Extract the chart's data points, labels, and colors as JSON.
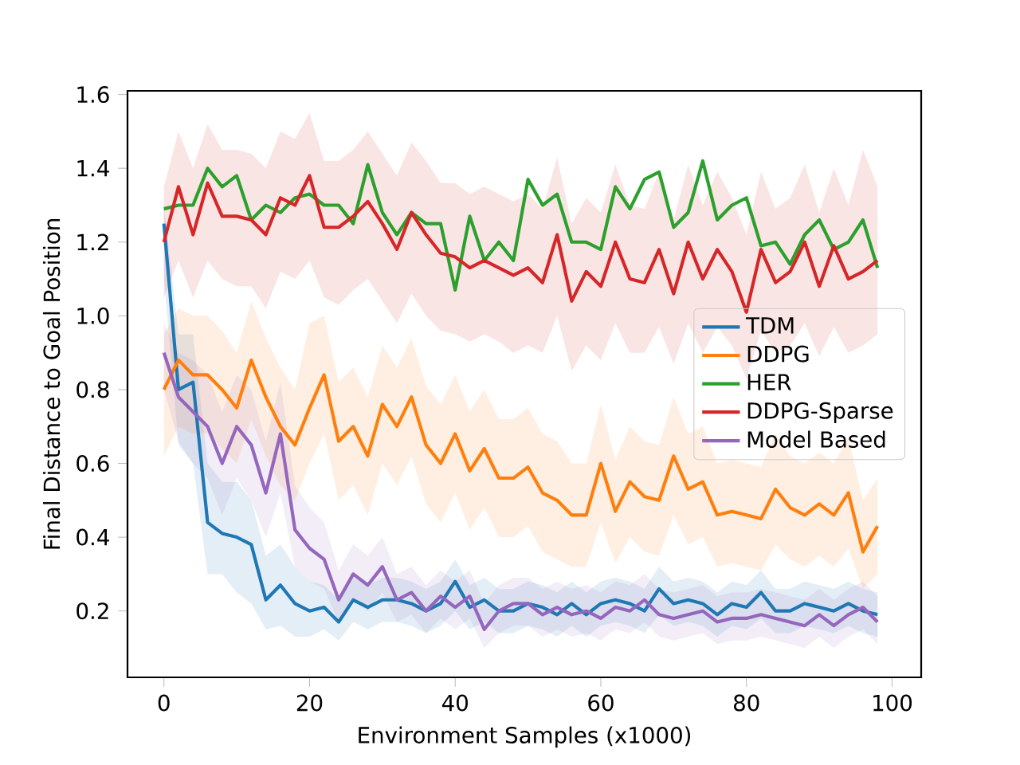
{
  "chart_data": {
    "type": "line",
    "xlabel": "Environment Samples (x1000)",
    "ylabel": "Final Distance to Goal Position",
    "legend": "right",
    "xlim": [
      -5,
      104
    ],
    "ylim": [
      0.02,
      1.61
    ],
    "xticks": [
      0,
      20,
      40,
      60,
      80,
      100
    ],
    "yticks": [
      {
        "value": 0.2,
        "label": "0.2"
      },
      {
        "value": 0.4,
        "label": "0.4"
      },
      {
        "value": 0.6,
        "label": "0.6"
      },
      {
        "value": 0.8,
        "label": "0.8"
      },
      {
        "value": 1.0,
        "label": "1.0"
      },
      {
        "value": 1.2,
        "label": "1.2"
      },
      {
        "value": 1.4,
        "label": "1.4"
      },
      {
        "value": 1.6,
        "label": "1.6"
      }
    ],
    "x": [
      0,
      2,
      4,
      6,
      8,
      10,
      12,
      14,
      16,
      18,
      20,
      22,
      24,
      26,
      28,
      30,
      32,
      34,
      36,
      38,
      40,
      42,
      44,
      46,
      48,
      50,
      52,
      54,
      56,
      58,
      60,
      62,
      64,
      66,
      68,
      70,
      72,
      74,
      76,
      78,
      80,
      82,
      84,
      86,
      88,
      90,
      92,
      94,
      96,
      98
    ],
    "series": [
      {
        "name": "TDM",
        "color": "#1f77b4",
        "values": [
          1.25,
          0.8,
          0.82,
          0.44,
          0.41,
          0.4,
          0.38,
          0.23,
          0.27,
          0.22,
          0.2,
          0.21,
          0.17,
          0.23,
          0.21,
          0.23,
          0.23,
          0.22,
          0.2,
          0.22,
          0.28,
          0.21,
          0.23,
          0.2,
          0.2,
          0.22,
          0.21,
          0.19,
          0.22,
          0.19,
          0.22,
          0.23,
          0.22,
          0.2,
          0.26,
          0.22,
          0.23,
          0.22,
          0.19,
          0.22,
          0.21,
          0.25,
          0.2,
          0.2,
          0.22,
          0.21,
          0.2,
          0.22,
          0.2,
          0.19
        ],
        "lower": [
          1.1,
          0.65,
          0.6,
          0.3,
          0.3,
          0.25,
          0.22,
          0.15,
          0.16,
          0.13,
          0.13,
          0.15,
          0.12,
          0.17,
          0.15,
          0.17,
          0.17,
          0.16,
          0.14,
          0.16,
          0.2,
          0.15,
          0.17,
          0.14,
          0.14,
          0.16,
          0.15,
          0.13,
          0.16,
          0.13,
          0.16,
          0.17,
          0.16,
          0.14,
          0.19,
          0.16,
          0.17,
          0.16,
          0.13,
          0.16,
          0.15,
          0.18,
          0.14,
          0.14,
          0.16,
          0.15,
          0.14,
          0.16,
          0.14,
          0.13
        ],
        "upper": [
          1.3,
          0.95,
          0.95,
          0.6,
          0.55,
          0.55,
          0.5,
          0.35,
          0.38,
          0.32,
          0.28,
          0.27,
          0.23,
          0.29,
          0.27,
          0.29,
          0.29,
          0.28,
          0.26,
          0.28,
          0.34,
          0.27,
          0.29,
          0.26,
          0.26,
          0.28,
          0.27,
          0.25,
          0.28,
          0.25,
          0.28,
          0.29,
          0.28,
          0.26,
          0.32,
          0.28,
          0.29,
          0.28,
          0.25,
          0.28,
          0.27,
          0.31,
          0.26,
          0.26,
          0.28,
          0.27,
          0.26,
          0.28,
          0.26,
          0.25
        ]
      },
      {
        "name": "DDPG",
        "color": "#ff7f0e",
        "values": [
          0.8,
          0.88,
          0.84,
          0.84,
          0.8,
          0.75,
          0.88,
          0.78,
          0.7,
          0.65,
          0.75,
          0.84,
          0.66,
          0.7,
          0.62,
          0.76,
          0.7,
          0.78,
          0.65,
          0.6,
          0.68,
          0.58,
          0.64,
          0.56,
          0.56,
          0.59,
          0.52,
          0.5,
          0.46,
          0.46,
          0.6,
          0.47,
          0.55,
          0.51,
          0.5,
          0.62,
          0.53,
          0.55,
          0.46,
          0.47,
          0.46,
          0.45,
          0.53,
          0.48,
          0.46,
          0.49,
          0.46,
          0.52,
          0.36,
          0.43
        ],
        "lower": [
          0.62,
          0.7,
          0.68,
          0.68,
          0.64,
          0.6,
          0.72,
          0.62,
          0.54,
          0.5,
          0.6,
          0.68,
          0.5,
          0.54,
          0.46,
          0.6,
          0.54,
          0.62,
          0.49,
          0.44,
          0.52,
          0.42,
          0.48,
          0.4,
          0.4,
          0.43,
          0.36,
          0.34,
          0.32,
          0.32,
          0.44,
          0.33,
          0.4,
          0.36,
          0.35,
          0.46,
          0.38,
          0.4,
          0.32,
          0.33,
          0.32,
          0.31,
          0.38,
          0.34,
          0.32,
          0.35,
          0.32,
          0.37,
          0.26,
          0.3
        ],
        "upper": [
          0.95,
          1.02,
          1.0,
          1.0,
          0.96,
          0.9,
          1.04,
          0.94,
          0.86,
          0.8,
          0.98,
          1.0,
          0.82,
          0.86,
          0.78,
          0.92,
          0.86,
          0.94,
          0.81,
          0.76,
          0.84,
          0.74,
          0.8,
          0.72,
          0.72,
          0.75,
          0.68,
          0.66,
          0.6,
          0.6,
          0.76,
          0.61,
          0.7,
          0.66,
          0.65,
          0.78,
          0.68,
          0.7,
          0.6,
          0.61,
          0.6,
          0.59,
          0.68,
          0.62,
          0.6,
          0.63,
          0.6,
          0.67,
          0.5,
          0.56
        ]
      },
      {
        "name": "HER",
        "color": "#2ca02c",
        "values": [
          1.29,
          1.3,
          1.3,
          1.4,
          1.35,
          1.38,
          1.26,
          1.3,
          1.28,
          1.32,
          1.33,
          1.3,
          1.3,
          1.25,
          1.41,
          1.28,
          1.22,
          1.28,
          1.25,
          1.25,
          1.07,
          1.27,
          1.15,
          1.2,
          1.15,
          1.37,
          1.3,
          1.33,
          1.2,
          1.2,
          1.18,
          1.35,
          1.29,
          1.37,
          1.39,
          1.24,
          1.28,
          1.42,
          1.26,
          1.3,
          1.32,
          1.19,
          1.2,
          1.14,
          1.22,
          1.26,
          1.18,
          1.2,
          1.26,
          1.13
        ]
      },
      {
        "name": "DDPG-Sparse",
        "color": "#d62728",
        "values": [
          1.2,
          1.35,
          1.22,
          1.36,
          1.27,
          1.27,
          1.26,
          1.22,
          1.32,
          1.3,
          1.38,
          1.24,
          1.24,
          1.27,
          1.31,
          1.25,
          1.18,
          1.28,
          1.22,
          1.17,
          1.16,
          1.13,
          1.15,
          1.13,
          1.11,
          1.13,
          1.09,
          1.22,
          1.04,
          1.12,
          1.08,
          1.2,
          1.1,
          1.09,
          1.18,
          1.06,
          1.2,
          1.1,
          1.18,
          1.12,
          1.01,
          1.18,
          1.09,
          1.12,
          1.2,
          1.08,
          1.19,
          1.1,
          1.12,
          1.15
        ],
        "lower": [
          1.05,
          1.15,
          1.05,
          1.15,
          1.1,
          1.08,
          1.08,
          1.02,
          1.12,
          1.1,
          1.15,
          1.05,
          1.03,
          1.07,
          1.1,
          1.04,
          0.98,
          1.06,
          1.0,
          0.96,
          0.95,
          0.93,
          0.95,
          0.93,
          0.9,
          0.92,
          0.9,
          1.0,
          0.85,
          0.92,
          0.88,
          0.98,
          0.9,
          0.9,
          0.97,
          0.87,
          0.98,
          0.9,
          0.97,
          0.92,
          0.83,
          0.96,
          0.9,
          0.92,
          0.98,
          0.89,
          0.97,
          0.9,
          0.92,
          0.95
        ],
        "upper": [
          1.35,
          1.5,
          1.4,
          1.52,
          1.45,
          1.45,
          1.44,
          1.4,
          1.5,
          1.48,
          1.55,
          1.42,
          1.42,
          1.45,
          1.5,
          1.44,
          1.38,
          1.47,
          1.42,
          1.36,
          1.36,
          1.33,
          1.35,
          1.33,
          1.31,
          1.33,
          1.29,
          1.43,
          1.25,
          1.32,
          1.28,
          1.41,
          1.3,
          1.29,
          1.39,
          1.26,
          1.41,
          1.3,
          1.39,
          1.32,
          1.22,
          1.39,
          1.29,
          1.32,
          1.41,
          1.28,
          1.4,
          1.3,
          1.45,
          1.35
        ]
      },
      {
        "name": "Model Based",
        "color": "#9467bd",
        "values": [
          0.9,
          0.78,
          0.74,
          0.7,
          0.6,
          0.7,
          0.65,
          0.52,
          0.68,
          0.42,
          0.37,
          0.34,
          0.23,
          0.3,
          0.27,
          0.32,
          0.23,
          0.25,
          0.2,
          0.24,
          0.21,
          0.24,
          0.15,
          0.2,
          0.22,
          0.22,
          0.19,
          0.21,
          0.19,
          0.2,
          0.18,
          0.21,
          0.2,
          0.23,
          0.19,
          0.18,
          0.19,
          0.2,
          0.17,
          0.18,
          0.18,
          0.19,
          0.18,
          0.17,
          0.16,
          0.19,
          0.16,
          0.19,
          0.21,
          0.17
        ],
        "lower": [
          0.8,
          0.66,
          0.6,
          0.56,
          0.46,
          0.56,
          0.5,
          0.4,
          0.52,
          0.32,
          0.28,
          0.26,
          0.17,
          0.23,
          0.2,
          0.25,
          0.17,
          0.19,
          0.14,
          0.18,
          0.15,
          0.18,
          0.1,
          0.14,
          0.16,
          0.16,
          0.13,
          0.15,
          0.13,
          0.14,
          0.12,
          0.15,
          0.14,
          0.17,
          0.13,
          0.12,
          0.13,
          0.14,
          0.11,
          0.12,
          0.12,
          0.13,
          0.12,
          0.11,
          0.1,
          0.13,
          0.1,
          0.13,
          0.15,
          0.11
        ],
        "upper": [
          0.98,
          0.9,
          0.88,
          0.84,
          0.74,
          0.84,
          0.8,
          0.66,
          0.82,
          0.54,
          0.48,
          0.44,
          0.31,
          0.38,
          0.35,
          0.4,
          0.3,
          0.32,
          0.27,
          0.31,
          0.28,
          0.31,
          0.22,
          0.27,
          0.29,
          0.29,
          0.26,
          0.28,
          0.26,
          0.27,
          0.25,
          0.28,
          0.27,
          0.3,
          0.26,
          0.25,
          0.26,
          0.27,
          0.24,
          0.25,
          0.25,
          0.26,
          0.25,
          0.24,
          0.23,
          0.26,
          0.23,
          0.26,
          0.28,
          0.24
        ]
      }
    ]
  }
}
